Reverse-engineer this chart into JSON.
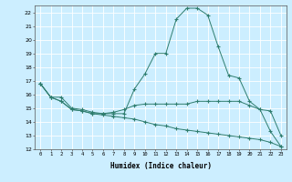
{
  "xlabel": "Humidex (Indice chaleur)",
  "ylabel": "",
  "bg_color": "#cceeff",
  "line_color": "#2e7d6e",
  "grid_color": "#ffffff",
  "xlim": [
    -0.5,
    23.5
  ],
  "ylim": [
    12,
    22.5
  ],
  "yticks": [
    12,
    13,
    14,
    15,
    16,
    17,
    18,
    19,
    20,
    21,
    22
  ],
  "xticks": [
    0,
    1,
    2,
    3,
    4,
    5,
    6,
    7,
    8,
    9,
    10,
    11,
    12,
    13,
    14,
    15,
    16,
    17,
    18,
    19,
    20,
    21,
    22,
    23
  ],
  "line1_x": [
    0,
    1,
    2,
    3,
    4,
    5,
    6,
    7,
    8,
    9,
    10,
    11,
    12,
    13,
    14,
    15,
    16,
    17,
    18,
    19,
    20,
    21,
    22,
    23
  ],
  "line1_y": [
    16.8,
    15.8,
    15.8,
    15.0,
    14.9,
    14.7,
    14.6,
    14.6,
    14.6,
    16.4,
    17.5,
    19.0,
    19.0,
    21.5,
    22.3,
    22.3,
    21.8,
    19.5,
    17.4,
    17.2,
    15.5,
    14.9,
    14.8,
    13.0
  ],
  "line2_x": [
    0,
    1,
    2,
    3,
    4,
    5,
    6,
    7,
    8,
    9,
    10,
    11,
    12,
    13,
    14,
    15,
    16,
    17,
    18,
    19,
    20,
    21,
    22,
    23
  ],
  "line2_y": [
    16.8,
    15.8,
    15.5,
    14.9,
    14.8,
    14.6,
    14.6,
    14.7,
    14.9,
    15.2,
    15.3,
    15.3,
    15.3,
    15.3,
    15.3,
    15.5,
    15.5,
    15.5,
    15.5,
    15.5,
    15.2,
    14.9,
    13.3,
    12.2
  ],
  "line3_x": [
    0,
    1,
    2,
    3,
    4,
    5,
    6,
    7,
    8,
    9,
    10,
    11,
    12,
    13,
    14,
    15,
    16,
    17,
    18,
    19,
    20,
    21,
    22,
    23
  ],
  "line3_y": [
    16.8,
    15.8,
    15.5,
    14.9,
    14.8,
    14.6,
    14.5,
    14.4,
    14.3,
    14.2,
    14.0,
    13.8,
    13.7,
    13.5,
    13.4,
    13.3,
    13.2,
    13.1,
    13.0,
    12.9,
    12.8,
    12.7,
    12.5,
    12.2
  ]
}
